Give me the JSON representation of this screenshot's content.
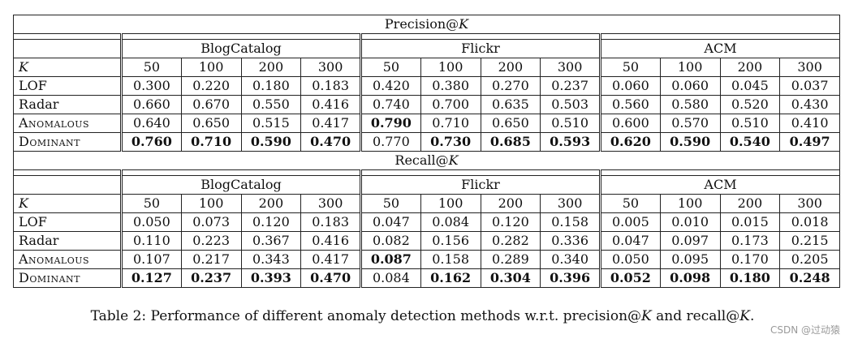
{
  "tables": [
    {
      "title_prefix": "Precision@",
      "title_var": "K",
      "datasets": [
        "BlogCatalog",
        "Flickr",
        "ACM"
      ],
      "k_label": "K",
      "k_values": [
        "50",
        "100",
        "200",
        "300"
      ],
      "rows": [
        {
          "method": "LOF",
          "values": [
            "0.300",
            "0.220",
            "0.180",
            "0.183",
            "0.420",
            "0.380",
            "0.270",
            "0.237",
            "0.060",
            "0.060",
            "0.045",
            "0.037"
          ],
          "bold": []
        },
        {
          "method": "Radar",
          "values": [
            "0.660",
            "0.670",
            "0.550",
            "0.416",
            "0.740",
            "0.700",
            "0.635",
            "0.503",
            "0.560",
            "0.580",
            "0.520",
            "0.430"
          ],
          "bold": []
        },
        {
          "method": "Anomalous",
          "values": [
            "0.640",
            "0.650",
            "0.515",
            "0.417",
            "0.790",
            "0.710",
            "0.650",
            "0.510",
            "0.600",
            "0.570",
            "0.510",
            "0.410"
          ],
          "bold": [
            4
          ]
        },
        {
          "method": "Dominant",
          "values": [
            "0.760",
            "0.710",
            "0.590",
            "0.470",
            "0.770",
            "0.730",
            "0.685",
            "0.593",
            "0.620",
            "0.590",
            "0.540",
            "0.497"
          ],
          "bold": [
            0,
            1,
            2,
            3,
            5,
            6,
            7,
            8,
            9,
            10,
            11
          ]
        }
      ]
    },
    {
      "title_prefix": "Recall@",
      "title_var": "K",
      "datasets": [
        "BlogCatalog",
        "Flickr",
        "ACM"
      ],
      "k_label": "K",
      "k_values": [
        "50",
        "100",
        "200",
        "300"
      ],
      "rows": [
        {
          "method": "LOF",
          "values": [
            "0.050",
            "0.073",
            "0.120",
            "0.183",
            "0.047",
            "0.084",
            "0.120",
            "0.158",
            "0.005",
            "0.010",
            "0.015",
            "0.018"
          ],
          "bold": []
        },
        {
          "method": "Radar",
          "values": [
            "0.110",
            "0.223",
            "0.367",
            "0.416",
            "0.082",
            "0.156",
            "0.282",
            "0.336",
            "0.047",
            "0.097",
            "0.173",
            "0.215"
          ],
          "bold": []
        },
        {
          "method": "Anomalous",
          "values": [
            "0.107",
            "0.217",
            "0.343",
            "0.417",
            "0.087",
            "0.158",
            "0.289",
            "0.340",
            "0.050",
            "0.095",
            "0.170",
            "0.205"
          ],
          "bold": [
            4
          ]
        },
        {
          "method": "Dominant",
          "values": [
            "0.127",
            "0.237",
            "0.393",
            "0.470",
            "0.084",
            "0.162",
            "0.304",
            "0.396",
            "0.052",
            "0.098",
            "0.180",
            "0.248"
          ],
          "bold": [
            0,
            1,
            2,
            3,
            5,
            6,
            7,
            8,
            9,
            10,
            11
          ]
        }
      ]
    }
  ],
  "caption": {
    "prefix": "Table 2: Performance of different anomaly detection methods w.r.t. precision@",
    "var1": "K",
    "middle": " and recall@",
    "var2": "K",
    "suffix": "."
  },
  "watermark": "CSDN @过动猿"
}
